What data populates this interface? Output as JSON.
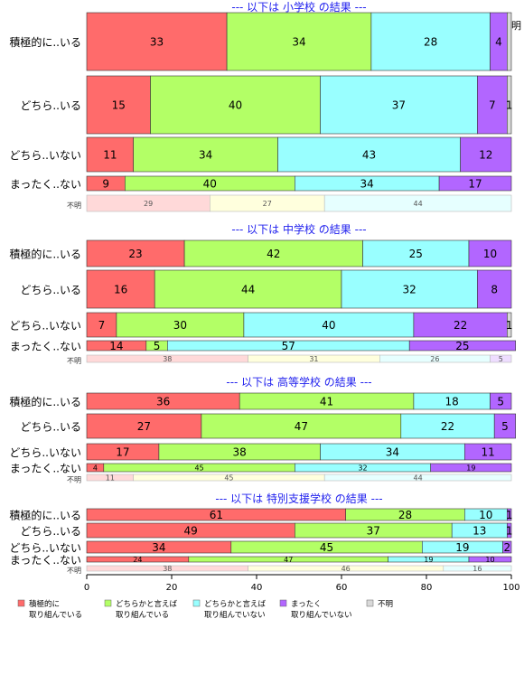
{
  "chart_data": {
    "type": "bar",
    "orientation": "horizontal",
    "stacked": "percent",
    "xlim": [
      0,
      100
    ],
    "xticks": [
      0,
      20,
      40,
      60,
      80,
      100
    ],
    "legend_position": "bottom",
    "column_headers": [
      "積極的に取り組んでいる",
      "どちらかと言えば取り組ん..",
      "どちらかと言えば取..",
      "まっ..",
      "不明"
    ],
    "legend": [
      {
        "label": "積極的に\n取り組んでいる",
        "color": "#ff6b6b"
      },
      {
        "label": "どちらかと言えば\n取り組んでいる",
        "color": "#b3ff66"
      },
      {
        "label": "どちらかと言えば\n取り組んでいない",
        "color": "#99ffff"
      },
      {
        "label": "まったく\n取り組んでいない",
        "color": "#b266ff"
      },
      {
        "label": "不明",
        "color": "#d9d9d9"
      }
    ],
    "panels": [
      {
        "title": "--- 以下は 小学校 の結果 ---",
        "rows": [
          {
            "label": "積極的に..いる",
            "values": [
              33,
              34,
              28,
              4,
              1
            ],
            "labels": [
              "33",
              "34",
              "28",
              "4",
              ""
            ]
          },
          {
            "label": "どちら..いる",
            "values": [
              15,
              40,
              37,
              7,
              1
            ],
            "labels": [
              "15",
              "40",
              "37",
              "7",
              "1"
            ]
          },
          {
            "label": "どちら..いない",
            "values": [
              11,
              34,
              43,
              12,
              0
            ],
            "labels": [
              "11",
              "34",
              "43",
              "12",
              ""
            ]
          },
          {
            "label": "まったく..ない",
            "values": [
              9,
              40,
              34,
              17,
              0
            ],
            "labels": [
              "9",
              "40",
              "34",
              "17",
              ""
            ]
          },
          {
            "label": "不明",
            "values": [
              29,
              27,
              44,
              0,
              0
            ],
            "labels": [
              "29",
              "27",
              "44",
              "",
              ""
            ],
            "pale": true
          }
        ]
      },
      {
        "title": "--- 以下は 中学校 の結果 ---",
        "rows": [
          {
            "label": "積極的に..いる",
            "values": [
              23,
              42,
              25,
              10,
              0
            ],
            "labels": [
              "23",
              "42",
              "25",
              "10",
              ""
            ]
          },
          {
            "label": "どちら..いる",
            "values": [
              16,
              44,
              32,
              8,
              0
            ],
            "labels": [
              "16",
              "44",
              "32",
              "8",
              ""
            ]
          },
          {
            "label": "どちら..いない",
            "values": [
              7,
              30,
              40,
              22,
              1
            ],
            "labels": [
              "7",
              "30",
              "40",
              "22",
              "1"
            ]
          },
          {
            "label": "まったく..ない",
            "values": [
              14,
              5,
              57,
              25,
              0
            ],
            "labels": [
              "14",
              "5",
              "57",
              "25",
              ""
            ]
          },
          {
            "label": "不明",
            "values": [
              38,
              31,
              26,
              5,
              0
            ],
            "labels": [
              "38",
              "31",
              "26",
              "5",
              ""
            ],
            "pale": true
          }
        ]
      },
      {
        "title": "--- 以下は 高等学校 の結果 ---",
        "rows": [
          {
            "label": "積極的に..いる",
            "values": [
              36,
              41,
              18,
              5,
              0
            ],
            "labels": [
              "36",
              "41",
              "18",
              "5",
              ""
            ]
          },
          {
            "label": "どちら..いる",
            "values": [
              27,
              47,
              22,
              5,
              0
            ],
            "labels": [
              "27",
              "47",
              "22",
              "5",
              ""
            ]
          },
          {
            "label": "どちら..いない",
            "values": [
              17,
              38,
              34,
              11,
              0
            ],
            "labels": [
              "17",
              "38",
              "34",
              "11",
              ""
            ]
          },
          {
            "label": "まったく..ない",
            "values": [
              4,
              45,
              32,
              19,
              0
            ],
            "labels": [
              "4",
              "45",
              "32",
              "19",
              ""
            ]
          },
          {
            "label": "不明",
            "values": [
              11,
              45,
              44,
              0,
              0
            ],
            "labels": [
              "11",
              "45",
              "44",
              "",
              ""
            ],
            "pale": true
          }
        ]
      },
      {
        "title": "--- 以下は 特別支援学校 の結果 ---",
        "rows": [
          {
            "label": "積極的に..いる",
            "values": [
              61,
              28,
              10,
              1,
              0
            ],
            "labels": [
              "61",
              "28",
              "10",
              "1",
              ""
            ]
          },
          {
            "label": "どちら..いる",
            "values": [
              49,
              37,
              13,
              1,
              0
            ],
            "labels": [
              "49",
              "37",
              "13",
              "1",
              ""
            ]
          },
          {
            "label": "どちら..いない",
            "values": [
              34,
              45,
              19,
              2,
              0
            ],
            "labels": [
              "34",
              "45",
              "19",
              "2",
              ""
            ]
          },
          {
            "label": "まったく..ない",
            "values": [
              24,
              47,
              19,
              10,
              0
            ],
            "labels": [
              "24",
              "47",
              "19",
              "10",
              ""
            ]
          },
          {
            "label": "不明",
            "values": [
              38,
              46,
              16,
              0,
              0
            ],
            "labels": [
              "38",
              "46",
              "16",
              "",
              ""
            ],
            "pale": true
          }
        ]
      }
    ]
  }
}
